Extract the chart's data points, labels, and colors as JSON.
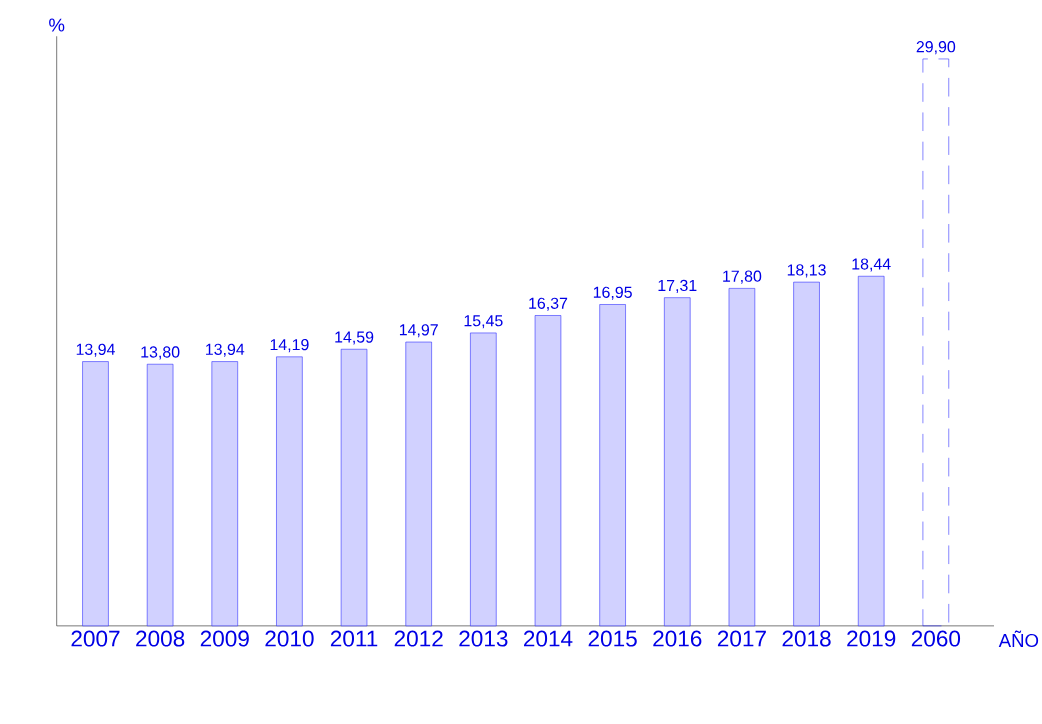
{
  "chart_data": {
    "type": "bar",
    "ylabel": "%",
    "xlabel": "AÑO",
    "categories": [
      "2007",
      "2008",
      "2009",
      "2010",
      "2011",
      "2012",
      "2013",
      "2014",
      "2015",
      "2016",
      "2017",
      "2018",
      "2019",
      "2060"
    ],
    "series": [
      {
        "color": "#1a1aff",
        "line_style": "solid",
        "values": [
          13.94,
          13.8,
          13.94,
          14.19,
          14.59,
          14.97,
          15.45,
          16.37,
          16.95,
          17.31,
          17.8,
          18.13,
          18.44,
          null
        ],
        "value_labels": [
          "13,94",
          "13,80",
          "13,94",
          "14,19",
          "14,59",
          "14,97",
          "15,45",
          "16,37",
          "16,95",
          "17,31",
          "17,80",
          "18,13",
          "18,44",
          null
        ]
      },
      {
        "color": "#1a1aff",
        "line_style": "dashed",
        "values": [
          null,
          null,
          null,
          null,
          null,
          null,
          null,
          null,
          null,
          null,
          null,
          null,
          null,
          29.9
        ],
        "value_labels": [
          null,
          null,
          null,
          null,
          null,
          null,
          null,
          null,
          null,
          null,
          null,
          null,
          null,
          "29,90"
        ]
      }
    ]
  }
}
